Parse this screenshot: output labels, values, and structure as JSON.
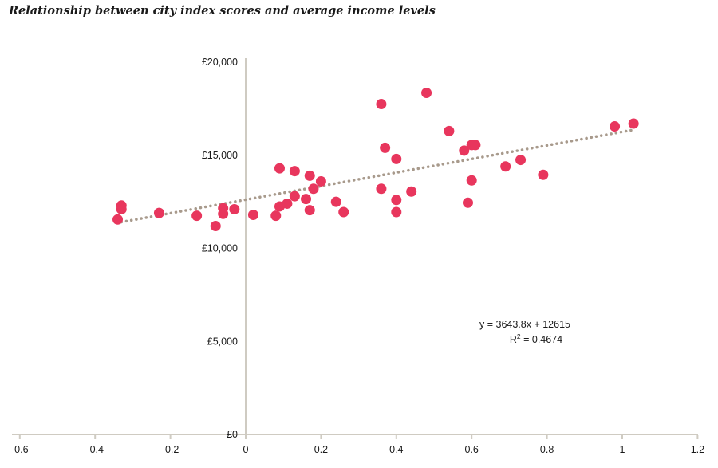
{
  "chart_data": {
    "type": "scatter",
    "title": "Relationship between city index scores and average income levels",
    "xlim": [
      -0.6,
      1.2
    ],
    "ylim": [
      0,
      20000
    ],
    "x_ticks": [
      {
        "value": -0.6,
        "label": "-0.6"
      },
      {
        "value": -0.4,
        "label": "-0.4"
      },
      {
        "value": -0.2,
        "label": "-0.2"
      },
      {
        "value": 0,
        "label": "0"
      },
      {
        "value": 0.2,
        "label": "0.2"
      },
      {
        "value": 0.4,
        "label": "0.4"
      },
      {
        "value": 0.6,
        "label": "0.6"
      },
      {
        "value": 0.8,
        "label": "0.8"
      },
      {
        "value": 1,
        "label": "1"
      },
      {
        "value": 1.2,
        "label": "1.2"
      }
    ],
    "y_ticks": [
      {
        "value": 0,
        "label": "£0"
      },
      {
        "value": 5000,
        "label": "£5,000"
      },
      {
        "value": 10000,
        "label": "£10,000"
      },
      {
        "value": 15000,
        "label": "£15,000"
      },
      {
        "value": 20000,
        "label": "£20,000"
      }
    ],
    "grid": false,
    "marker_color": "#e8365d",
    "trendline_color": "#a89a8c",
    "axis_color": "#cfcbc2",
    "trendline": {
      "slope": 3643.8,
      "intercept": 12615,
      "x_range": [
        -0.33,
        1.03
      ]
    },
    "equation_text": "y = 3643.8x + 12615",
    "r2_prefix": "R",
    "r2_sup": "2",
    "r2_suffix": " = 0.4674",
    "points": [
      {
        "x": -0.34,
        "y": 11550
      },
      {
        "x": -0.33,
        "y": 12300
      },
      {
        "x": -0.33,
        "y": 12100
      },
      {
        "x": -0.23,
        "y": 11900
      },
      {
        "x": -0.13,
        "y": 11750
      },
      {
        "x": -0.08,
        "y": 11200
      },
      {
        "x": -0.06,
        "y": 12150
      },
      {
        "x": -0.06,
        "y": 11850
      },
      {
        "x": -0.03,
        "y": 12100
      },
      {
        "x": 0.02,
        "y": 11800
      },
      {
        "x": 0.08,
        "y": 11750
      },
      {
        "x": 0.09,
        "y": 14300
      },
      {
        "x": 0.09,
        "y": 12250
      },
      {
        "x": 0.11,
        "y": 12400
      },
      {
        "x": 0.13,
        "y": 14150
      },
      {
        "x": 0.13,
        "y": 12800
      },
      {
        "x": 0.16,
        "y": 12650
      },
      {
        "x": 0.17,
        "y": 13900
      },
      {
        "x": 0.18,
        "y": 13200
      },
      {
        "x": 0.17,
        "y": 12050
      },
      {
        "x": 0.2,
        "y": 13600
      },
      {
        "x": 0.24,
        "y": 12500
      },
      {
        "x": 0.26,
        "y": 11950
      },
      {
        "x": 0.36,
        "y": 17750
      },
      {
        "x": 0.37,
        "y": 15400
      },
      {
        "x": 0.36,
        "y": 13200
      },
      {
        "x": 0.4,
        "y": 14800
      },
      {
        "x": 0.4,
        "y": 12600
      },
      {
        "x": 0.4,
        "y": 11950
      },
      {
        "x": 0.44,
        "y": 13050
      },
      {
        "x": 0.48,
        "y": 18350
      },
      {
        "x": 0.54,
        "y": 16300
      },
      {
        "x": 0.58,
        "y": 15250
      },
      {
        "x": 0.6,
        "y": 15550
      },
      {
        "x": 0.61,
        "y": 15550
      },
      {
        "x": 0.6,
        "y": 13650
      },
      {
        "x": 0.59,
        "y": 12450
      },
      {
        "x": 0.69,
        "y": 14400
      },
      {
        "x": 0.73,
        "y": 14750
      },
      {
        "x": 0.79,
        "y": 13950
      },
      {
        "x": 0.98,
        "y": 16550
      },
      {
        "x": 1.03,
        "y": 16700
      }
    ]
  }
}
